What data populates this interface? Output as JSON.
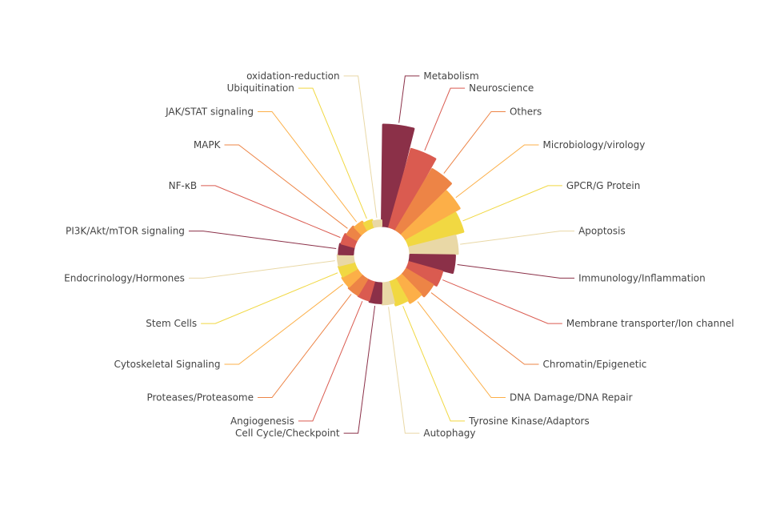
{
  "chart_data": {
    "type": "pie",
    "subtype": "nightingale-rose",
    "title": "",
    "palette": [
      "#8B3048",
      "#DA5B50",
      "#ED8446",
      "#FCAF48",
      "#F1D842",
      "#E9D8A6"
    ],
    "label_color": "#444444",
    "categories": [
      "Metabolism",
      "Neuroscience",
      "Others",
      "Microbiology/virology",
      "GPCR/G Protein",
      "Apoptosis",
      "Immunology/Inflammation",
      "Membrane transporter/Ion channel",
      "Chromatin/Epigenetic",
      "DNA Damage/DNA Repair",
      "Tyrosine Kinase/Adaptors",
      "Autophagy",
      "Cell Cycle/Checkpoint",
      "Angiogenesis",
      "Proteases/Proteasome",
      "Cytoskeletal Signaling",
      "Stem Cells",
      "Endocrinology/Hormones",
      "PI3K/Akt/mTOR signaling",
      "NF-κB",
      "MAPK",
      "JAK/STAT signaling",
      "Ubiquitination",
      "oxidation-reduction"
    ],
    "values": [
      175,
      140,
      122,
      107,
      97,
      82,
      77,
      59,
      53,
      47,
      41,
      36,
      34,
      32,
      31,
      29,
      27,
      26,
      24,
      22,
      19,
      16,
      12,
      9
    ]
  }
}
